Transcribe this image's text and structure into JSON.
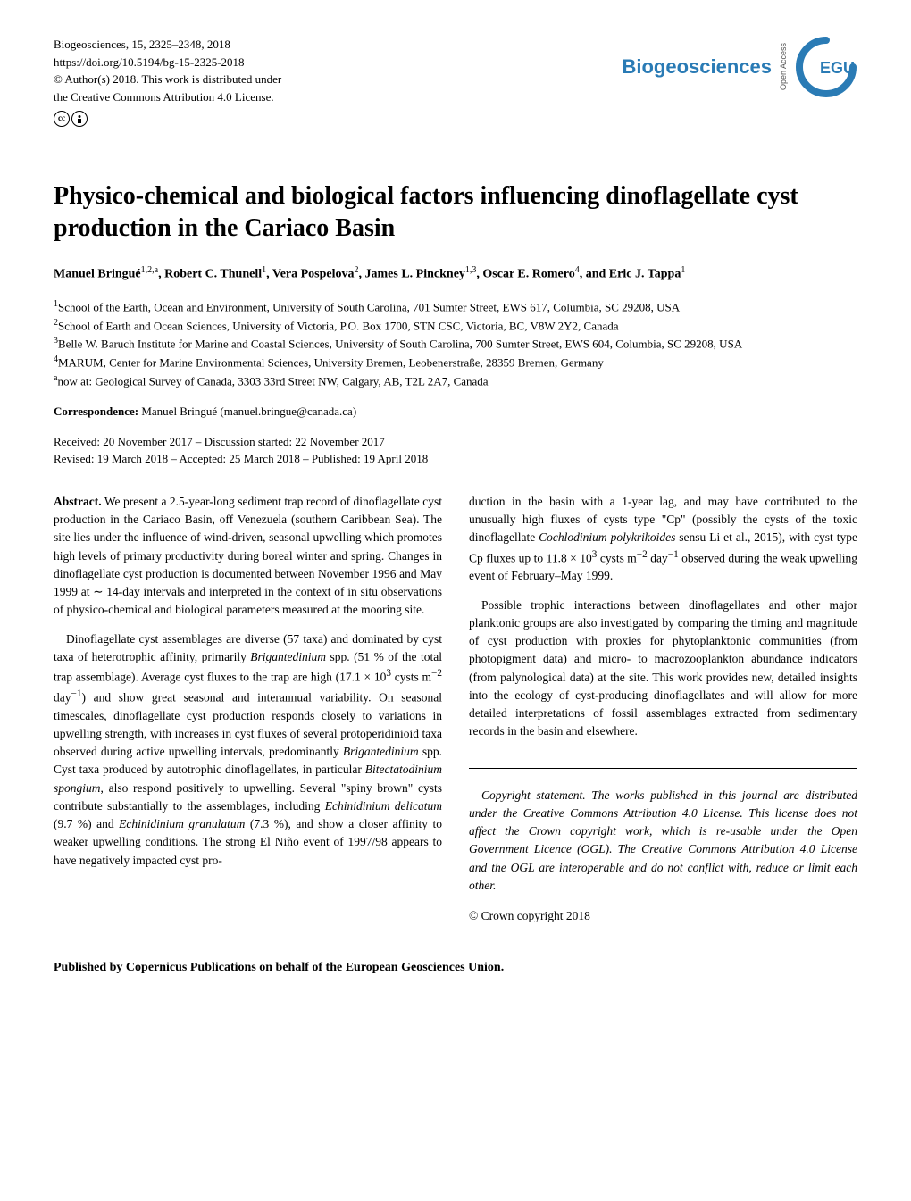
{
  "journal": {
    "citation": "Biogeosciences, 15, 2325–2348, 2018",
    "doi": "https://doi.org/10.5194/bg-15-2325-2018",
    "copyright": "© Author(s) 2018. This work is distributed under",
    "license": "the Creative Commons Attribution 4.0 License.",
    "name": "Biogeosciences",
    "open_access": "Open Access",
    "egu": "EGU"
  },
  "title": "Physico-chemical and biological factors influencing dinoflagellate cyst production in the Cariaco Basin",
  "authors_html": "Manuel Bringué<sup>1,2,a</sup>, Robert C. Thunell<sup>1</sup>, Vera Pospelova<sup>2</sup>, James L. Pinckney<sup>1,3</sup>, Oscar E. Romero<sup>4</sup>, and Eric J. Tappa<sup>1</sup>",
  "affiliations": [
    "<sup>1</sup>School of the Earth, Ocean and Environment, University of South Carolina, 701 Sumter Street, EWS 617, Columbia, SC 29208, USA",
    "<sup>2</sup>School of Earth and Ocean Sciences, University of Victoria, P.O. Box 1700, STN CSC, Victoria, BC, V8W 2Y2, Canada",
    "<sup>3</sup>Belle W. Baruch Institute for Marine and Coastal Sciences, University of South Carolina, 700 Sumter Street, EWS 604, Columbia, SC 29208, USA",
    "<sup>4</sup>MARUM, Center for Marine Environmental Sciences, University Bremen, Leobenerstraße, 28359 Bremen, Germany",
    "<sup>a</sup>now at: Geological Survey of Canada, 3303 33rd Street NW, Calgary, AB, T2L 2A7, Canada"
  ],
  "correspondence": {
    "label": "Correspondence:",
    "text": "Manuel Bringué (manuel.bringue@canada.ca)"
  },
  "dates": {
    "line1": "Received: 20 November 2017 – Discussion started: 22 November 2017",
    "line2": "Revised: 19 March 2018 – Accepted: 25 March 2018 – Published: 19 April 2018"
  },
  "abstract": {
    "label": "Abstract.",
    "para1": "We present a 2.5-year-long sediment trap record of dinoflagellate cyst production in the Cariaco Basin, off Venezuela (southern Caribbean Sea). The site lies under the influence of wind-driven, seasonal upwelling which promotes high levels of primary productivity during boreal winter and spring. Changes in dinoflagellate cyst production is documented between November 1996 and May 1999 at ∼ 14-day intervals and interpreted in the context of in situ observations of physico-chemical and biological parameters measured at the mooring site.",
    "para2": "Dinoflagellate cyst assemblages are diverse (57 taxa) and dominated by cyst taxa of heterotrophic affinity, primarily <i>Brigantedinium</i> spp. (51 % of the total trap assemblage). Average cyst fluxes to the trap are high (17.1 × 10<sup>3</sup> cysts m<sup>−2</sup> day<sup>−1</sup>) and show great seasonal and interannual variability. On seasonal timescales, dinoflagellate cyst production responds closely to variations in upwelling strength, with increases in cyst fluxes of several protoperidinioid taxa observed during active upwelling intervals, predominantly <i>Brigantedinium</i> spp. Cyst taxa produced by autotrophic dinoflagellates, in particular <i>Bitectatodinium spongium</i>, also respond positively to upwelling. Several \"spiny brown\" cysts contribute substantially to the assemblages, including <i>Echinidinium delicatum</i> (9.7 %) and <i>Echinidinium granulatum</i> (7.3 %), and show a closer affinity to weaker upwelling conditions. The strong El Niño event of 1997/98 appears to have negatively impacted cyst pro-"
  },
  "right_col": {
    "para1": "duction in the basin with a 1-year lag, and may have contributed to the unusually high fluxes of cysts type \"Cp\" (possibly the cysts of the toxic dinoflagellate <i>Cochlodinium polykrikoides</i> sensu Li et al., 2015), with cyst type Cp fluxes up to 11.8 × 10<sup>3</sup> cysts m<sup>−2</sup> day<sup>−1</sup> observed during the weak upwelling event of February–May 1999.",
    "para2": "Possible trophic interactions between dinoflagellates and other major planktonic groups are also investigated by comparing the timing and magnitude of cyst production with proxies for phytoplanktonic communities (from photopigment data) and micro- to macrozooplankton abundance indicators (from palynological data) at the site. This work provides new, detailed insights into the ecology of cyst-producing dinoflagellates and will allow for more detailed interpretations of fossil assemblages extracted from sedimentary records in the basin and elsewhere.",
    "copyright_label": "Copyright statement.",
    "copyright_text": "The works published in this journal are distributed under the Creative Commons Attribution 4.0 License. This license does not affect the Crown copyright work, which is re-usable under the Open Government Licence (OGL). The Creative Commons Attribution 4.0 License and the OGL are interoperable and do not conflict with, reduce or limit each other.",
    "crown": "© Crown copyright 2018"
  },
  "footer": "Published by Copernicus Publications on behalf of the European Geosciences Union.",
  "colors": {
    "biogeosciences_blue": "#2a7bb5",
    "egu_blue": "#2a7bb5",
    "text": "#000000",
    "background": "#ffffff"
  }
}
